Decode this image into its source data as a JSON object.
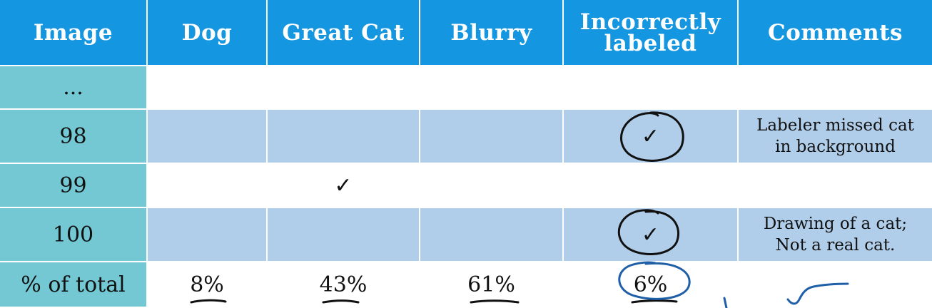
{
  "columns": {
    "image": "Image",
    "dog": "Dog",
    "great_cat": "Great Cat",
    "blurry": "Blurry",
    "incorrect_line1": "Incorrectly",
    "incorrect_line2": "labeled",
    "comments": "Comments"
  },
  "rows": [
    {
      "image": "...",
      "dog": "",
      "great_cat": "",
      "blurry": "",
      "incorrect": "",
      "comment_line1": "",
      "comment_line2": ""
    },
    {
      "image": "98",
      "dog": "",
      "great_cat": "",
      "blurry": "",
      "incorrect": "✓",
      "comment_line1": "Labeler missed cat",
      "comment_line2": "in background"
    },
    {
      "image": "99",
      "dog": "",
      "great_cat": "✓",
      "blurry": "",
      "incorrect": "",
      "comment_line1": "",
      "comment_line2": ""
    },
    {
      "image": "100",
      "dog": "",
      "great_cat": "",
      "blurry": "",
      "incorrect": "✓",
      "comment_line1": "Drawing of a cat;",
      "comment_line2": "Not a real cat."
    }
  ],
  "totals": {
    "label": "% of total",
    "dog": "8%",
    "great_cat": "43%",
    "blurry": "61%",
    "incorrect": "6%"
  },
  "colors": {
    "header": "#1596e0",
    "image_col": "#74c8d4",
    "shaded_row": "#b0cde9",
    "ink_annotation": "#1f5fa8"
  }
}
